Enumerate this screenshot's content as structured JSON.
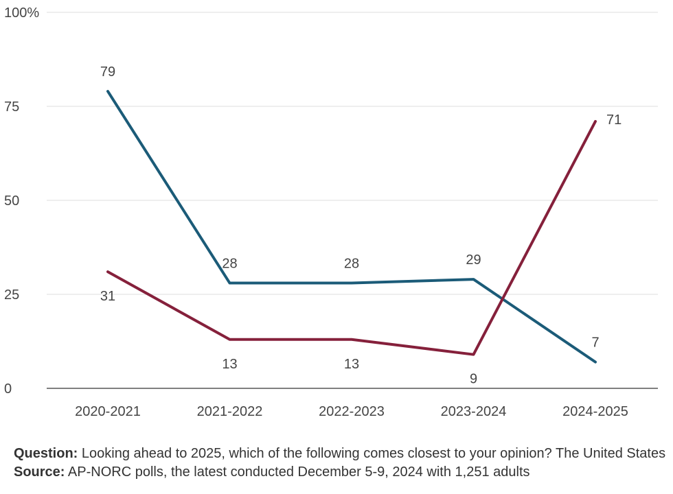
{
  "chart_data": {
    "type": "line",
    "categories": [
      "2020-2021",
      "2021-2022",
      "2022-2023",
      "2023-2024",
      "2024-2025"
    ],
    "series": [
      {
        "values": [
          79,
          28,
          28,
          29,
          7
        ],
        "color": "#1b5b78"
      },
      {
        "values": [
          31,
          13,
          13,
          9,
          71
        ],
        "color": "#85203b"
      }
    ],
    "ylim": [
      0,
      100
    ],
    "yticks": [
      0,
      25,
      50,
      75,
      100
    ],
    "ytick_labels": [
      "0",
      "25",
      "50",
      "75",
      "100%"
    ],
    "grid": true
  },
  "footer": {
    "question_label": "Question:",
    "question_text": "Looking ahead to 2025, which of the following comes closest to your opinion? The United States",
    "source_label": "Source:",
    "source_text": "AP-NORC polls, the latest conducted December 5-9, 2024 with 1,251 adults"
  }
}
